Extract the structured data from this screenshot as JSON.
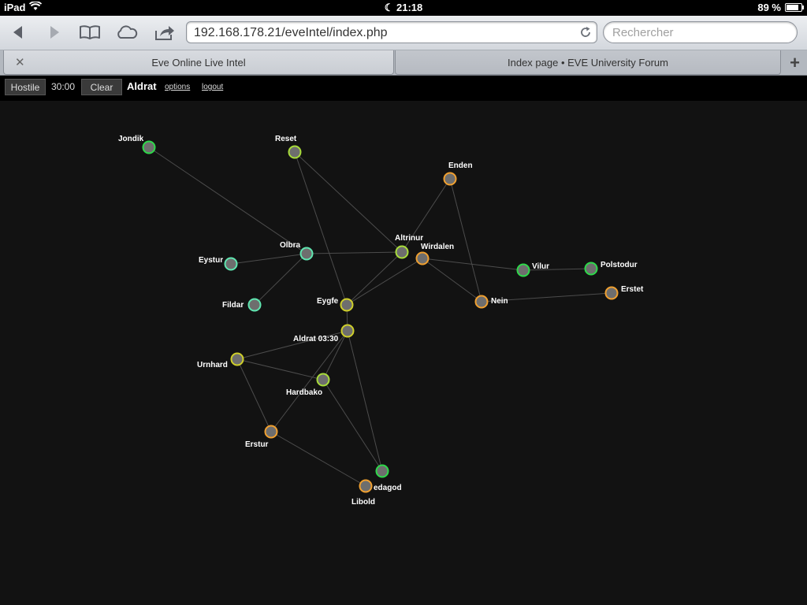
{
  "status": {
    "device": "iPad",
    "time": "21:18",
    "battery": "89 %"
  },
  "toolbar": {
    "url": "192.168.178.21/eveIntel/index.php",
    "search_placeholder": "Rechercher"
  },
  "tabs": [
    {
      "label": "Eve Online Live Intel",
      "active": true
    },
    {
      "label": "Index page • EVE University Forum",
      "active": false
    }
  ],
  "app": {
    "hostile_label": "Hostile",
    "timer": "30:00",
    "clear_label": "Clear",
    "user": "Aldrat",
    "options_label": "options",
    "logout_label": "logout"
  },
  "colors": {
    "green": "#2ed94a",
    "orange": "#f0a030",
    "teal": "#5fe6b0",
    "yellow": "#cfcf2a",
    "lime": "#a8dc3a",
    "node_fill": "#6e6e6e",
    "edge": "#4c4c4c"
  },
  "systems": [
    {
      "id": "jondik",
      "label": "Jondik",
      "color": "green"
    },
    {
      "id": "reset",
      "label": "Reset",
      "color": "lime"
    },
    {
      "id": "enden",
      "label": "Enden",
      "color": "orange"
    },
    {
      "id": "altrinur",
      "label": "Altrinur",
      "color": "lime"
    },
    {
      "id": "wirdalen",
      "label": "Wirdalen",
      "color": "orange"
    },
    {
      "id": "olbra",
      "label": "Olbra",
      "color": "teal"
    },
    {
      "id": "eystur",
      "label": "Eystur",
      "color": "teal"
    },
    {
      "id": "vilur",
      "label": "Vilur",
      "color": "green"
    },
    {
      "id": "polstodur",
      "label": "Polstodur",
      "color": "green"
    },
    {
      "id": "fildar",
      "label": "Fildar",
      "color": "teal"
    },
    {
      "id": "eygfe",
      "label": "Eygfe",
      "color": "yellow"
    },
    {
      "id": "nein",
      "label": "Nein",
      "color": "orange"
    },
    {
      "id": "erstet",
      "label": "Erstet",
      "color": "orange"
    },
    {
      "id": "aldrat",
      "label": "Aldrat 03:30",
      "color": "yellow"
    },
    {
      "id": "urnhard",
      "label": "Urnhard",
      "color": "yellow"
    },
    {
      "id": "hardbako",
      "label": "Hardbako",
      "color": "lime"
    },
    {
      "id": "erstur",
      "label": "Erstur",
      "color": "orange"
    },
    {
      "id": "edagod",
      "label": "edagod",
      "color": "green"
    },
    {
      "id": "libold",
      "label": "Libold",
      "color": "orange"
    }
  ],
  "links": [
    [
      "jondik",
      "olbra"
    ],
    [
      "reset",
      "altrinur"
    ],
    [
      "reset",
      "eygfe"
    ],
    [
      "olbra",
      "eystur"
    ],
    [
      "olbra",
      "fildar"
    ],
    [
      "olbra",
      "altrinur"
    ],
    [
      "altrinur",
      "eygfe"
    ],
    [
      "altrinur",
      "enden"
    ],
    [
      "enden",
      "nein"
    ],
    [
      "wirdalen",
      "vilur"
    ],
    [
      "wirdalen",
      "nein"
    ],
    [
      "wirdalen",
      "eygfe"
    ],
    [
      "vilur",
      "polstodur"
    ],
    [
      "nein",
      "erstet"
    ],
    [
      "eygfe",
      "aldrat"
    ],
    [
      "aldrat",
      "urnhard"
    ],
    [
      "aldrat",
      "hardbako"
    ],
    [
      "aldrat",
      "edagod"
    ],
    [
      "aldrat",
      "erstur"
    ],
    [
      "urnhard",
      "hardbako"
    ],
    [
      "urnhard",
      "erstur"
    ],
    [
      "hardbako",
      "edagod"
    ],
    [
      "erstur",
      "libold"
    ]
  ]
}
